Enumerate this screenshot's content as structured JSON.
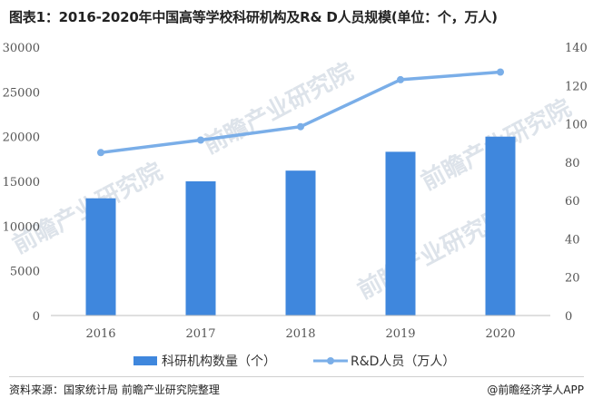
{
  "chart_data": {
    "type": "bar",
    "title": "图表1：2016-2020年中国高等学校科研机构及R& D人员规模(单位：个，万人)",
    "categories": [
      "2016",
      "2017",
      "2018",
      "2019",
      "2020"
    ],
    "series": [
      {
        "name": "科研机构数量（个）",
        "type": "bar",
        "axis": "left",
        "values": [
          13100,
          15000,
          16200,
          18300,
          20000
        ],
        "color": "#3f87dd"
      },
      {
        "name": "R&D人员（万人）",
        "type": "line",
        "axis": "right",
        "values": [
          85,
          91.5,
          98.5,
          123,
          127
        ],
        "color": "#7aaee8"
      }
    ],
    "y_left": {
      "ylim": [
        0,
        30000
      ],
      "ticks": [
        "0",
        "5000",
        "10000",
        "15000",
        "20000",
        "25000",
        "30000"
      ]
    },
    "y_right": {
      "ylim": [
        0,
        140
      ],
      "ticks": [
        "0",
        "20",
        "40",
        "60",
        "80",
        "100",
        "120",
        "140"
      ]
    },
    "grid": false,
    "legend": "bottom"
  },
  "watermark": "前瞻产业研究院",
  "footer": {
    "source": "资料来源：国家统计局 前瞻产业研究院整理",
    "brand": "@前瞻经济学人APP"
  }
}
